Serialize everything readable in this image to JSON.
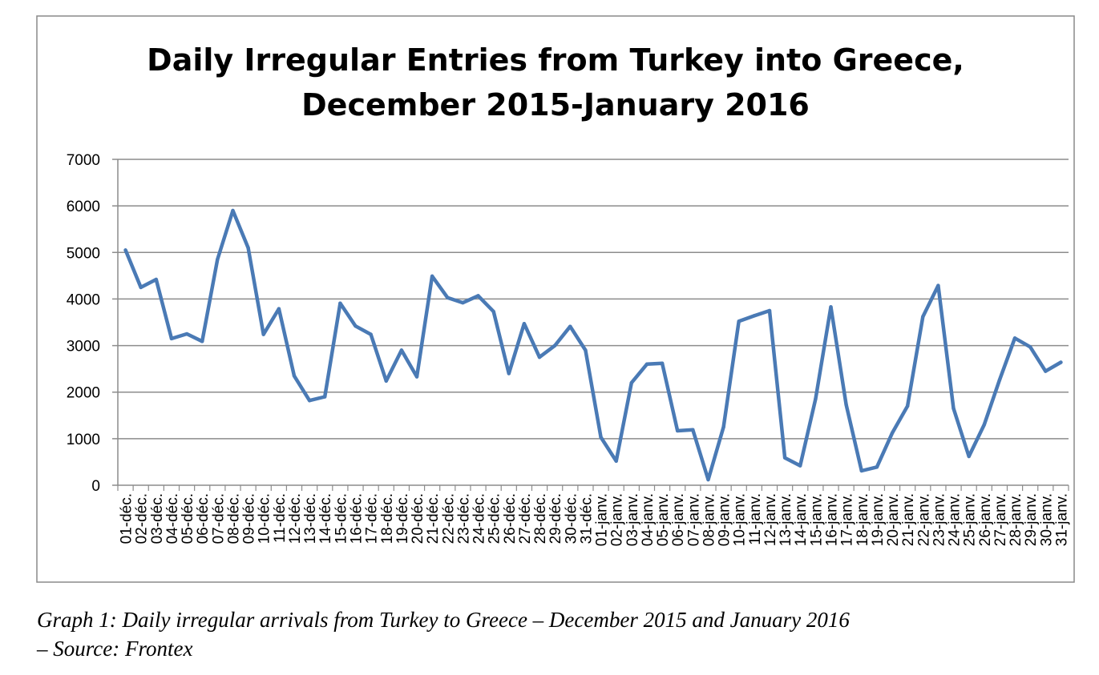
{
  "chart_data": {
    "type": "line",
    "title": "Daily Irregular Entries from Turkey into Greece, December 2015-January 2016",
    "title_lines": [
      "Daily Irregular Entries from Turkey into Greece,",
      "December 2015-January 2016"
    ],
    "xlabel": "",
    "ylabel": "",
    "ylim": [
      0,
      7000
    ],
    "yticks": [
      0,
      1000,
      2000,
      3000,
      4000,
      5000,
      6000,
      7000
    ],
    "grid": "horizontal",
    "line_color": "#4a7ab5",
    "grid_color": "#8c8c8c",
    "x": [
      "01-déc.",
      "02-déc.",
      "03-déc.",
      "04-déc.",
      "05-déc.",
      "06-déc.",
      "07-déc.",
      "08-déc.",
      "09-déc.",
      "10-déc.",
      "11-déc.",
      "12-déc.",
      "13-déc.",
      "14-déc.",
      "15-déc.",
      "16-déc.",
      "17-déc.",
      "18-déc.",
      "19-déc.",
      "20-déc.",
      "21-déc.",
      "22-déc.",
      "23-déc.",
      "24-déc.",
      "25-déc.",
      "26-déc.",
      "27-déc.",
      "28-déc.",
      "29-déc.",
      "30-déc.",
      "31-déc.",
      "01-janv.",
      "02-janv.",
      "03-janv.",
      "04-janv.",
      "05-janv.",
      "06-janv.",
      "07-janv.",
      "08-janv.",
      "09-janv.",
      "10-janv.",
      "11-janv.",
      "12-janv.",
      "13-janv.",
      "14-janv.",
      "15-janv.",
      "16-janv.",
      "17-janv.",
      "18-janv.",
      "19-janv.",
      "20-janv.",
      "21-janv.",
      "22-janv.",
      "23-janv.",
      "24-janv.",
      "25-janv.",
      "26-janv.",
      "27-janv.",
      "28-janv.",
      "29-janv.",
      "30-janv.",
      "31-janv."
    ],
    "series": [
      {
        "values": [
          5050,
          4250,
          4420,
          3150,
          3250,
          3090,
          4850,
          5900,
          5100,
          3240,
          3790,
          2350,
          1820,
          1900,
          3910,
          3420,
          3240,
          2240,
          2900,
          2330,
          4490,
          4030,
          3920,
          4070,
          3730,
          2400,
          3470,
          2750,
          3000,
          3410,
          2900,
          1030,
          520,
          2200,
          2600,
          2620,
          1170,
          1190,
          120,
          1250,
          3520,
          3640,
          3750,
          590,
          420,
          1850,
          3830,
          1730,
          310,
          390,
          1120,
          1700,
          3620,
          4290,
          1650,
          620,
          1300,
          2260,
          3160,
          2970,
          2450,
          2640
        ]
      }
    ]
  },
  "caption": {
    "line1": "Graph 1: Daily irregular arrivals from Turkey to Greece – December 2015 and January 2016",
    "line2": "– Source: Frontex"
  }
}
